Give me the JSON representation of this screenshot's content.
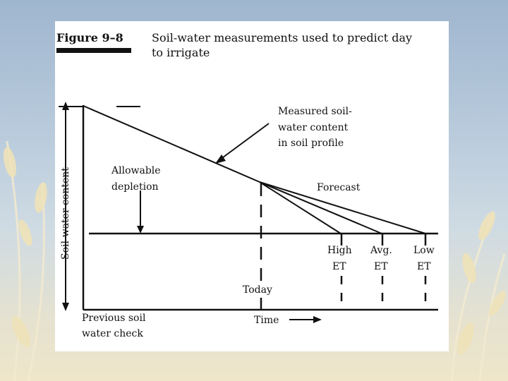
{
  "figure": {
    "label": "Figure 9–8",
    "title_line1": "Soil-water measurements used to predict day",
    "title_line2": "to irrigate"
  },
  "diagram": {
    "y_axis_label": "Soil-water content",
    "x_axis_label": "Time",
    "measured_line1": "Measured soil-",
    "measured_line2": "water content",
    "measured_line3": "in soil profile",
    "allowable_line1": "Allowable",
    "allowable_line2": "depletion",
    "forecast": "Forecast",
    "today": "Today",
    "previous_line1": "Previous soil",
    "previous_line2": "water check",
    "high_et_line1": "High",
    "high_et_line2": "ET",
    "avg_et_line1": "Avg.",
    "avg_et_line2": "ET",
    "low_et_line1": "Low",
    "low_et_line2": "ET"
  },
  "colors": {
    "ink": "#111111",
    "panel": "#ffffff",
    "sky": "#b9cbdc",
    "wheat": "#e9dcb0"
  }
}
